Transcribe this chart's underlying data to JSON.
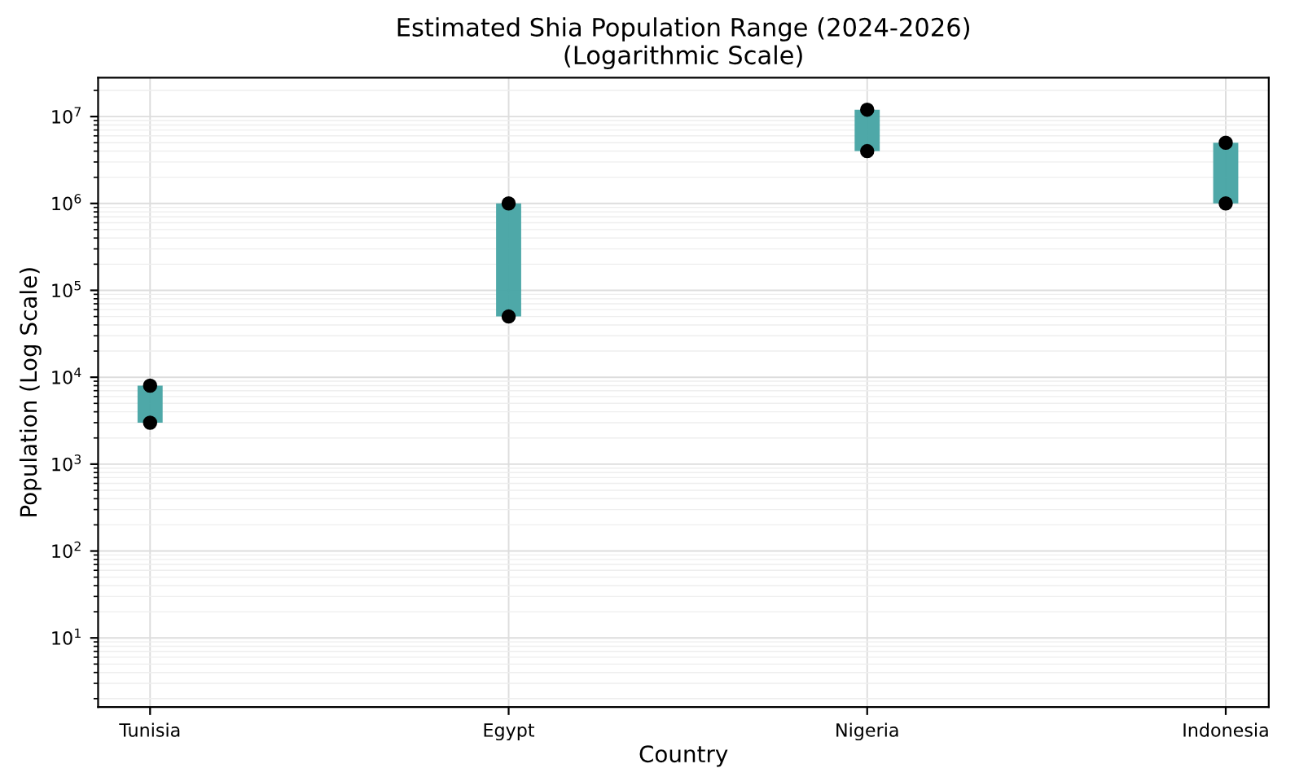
{
  "chart_data": {
    "type": "bar",
    "title": "Estimated Shia Population Range (2024-2026)\n(Logarithmic Scale)",
    "xlabel": "Country",
    "ylabel": "Population (Log Scale)",
    "categories": [
      "Tunisia",
      "Egypt",
      "Nigeria",
      "Indonesia"
    ],
    "log": "y",
    "grid": true,
    "ylim": [
      1.6,
      28000000
    ],
    "yticks": [
      {
        "value": 10,
        "label": "10$^{1}$"
      },
      {
        "value": 100,
        "label": "10$^{2}$"
      },
      {
        "value": 1000,
        "label": "10$^{3}$"
      },
      {
        "value": 10000,
        "label": "10$^{4}$"
      },
      {
        "value": 100000,
        "label": "10$^{5}$"
      },
      {
        "value": 1000000,
        "label": "10$^{6}$"
      },
      {
        "value": 10000000,
        "label": "10$^{7}$"
      }
    ],
    "series": [
      {
        "color": "#45a3a3",
        "base": [
          3000,
          50000,
          4000000,
          1000000
        ],
        "values": [
          5000,
          950000,
          8000000,
          4000000
        ]
      },
      {
        "type": "scatter",
        "color": "#000000",
        "x": [
          "Tunisia",
          "Egypt",
          "Nigeria",
          "Indonesia"
        ],
        "values": [
          3000,
          50000,
          4000000,
          1000000
        ]
      },
      {
        "type": "scatter",
        "color": "#000000",
        "x": [
          "Tunisia",
          "Egypt",
          "Nigeria",
          "Indonesia"
        ],
        "values": [
          8000,
          1000000,
          12000000,
          5000000
        ]
      }
    ]
  }
}
